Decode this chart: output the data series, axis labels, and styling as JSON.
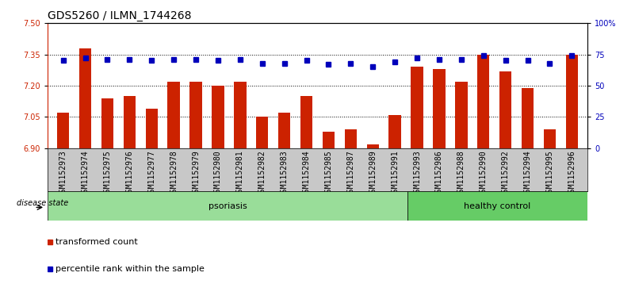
{
  "title": "GDS5260 / ILMN_1744268",
  "samples": [
    "GSM1152973",
    "GSM1152974",
    "GSM1152975",
    "GSM1152976",
    "GSM1152977",
    "GSM1152978",
    "GSM1152979",
    "GSM1152980",
    "GSM1152981",
    "GSM1152982",
    "GSM1152983",
    "GSM1152984",
    "GSM1152985",
    "GSM1152987",
    "GSM1152989",
    "GSM1152991",
    "GSM1152993",
    "GSM1152986",
    "GSM1152988",
    "GSM1152990",
    "GSM1152992",
    "GSM1152994",
    "GSM1152995",
    "GSM1152996"
  ],
  "bar_values": [
    7.07,
    7.38,
    7.14,
    7.15,
    7.09,
    7.22,
    7.22,
    7.2,
    7.22,
    7.05,
    7.07,
    7.15,
    6.98,
    6.99,
    6.92,
    7.06,
    7.29,
    7.28,
    7.22,
    7.35,
    7.27,
    7.19,
    6.99,
    7.35
  ],
  "percentile_values": [
    70,
    72,
    71,
    71,
    70,
    71,
    71,
    70,
    71,
    68,
    68,
    70,
    67,
    68,
    65,
    69,
    72,
    71,
    71,
    74,
    70,
    70,
    68,
    74
  ],
  "bar_color": "#cc2200",
  "square_color": "#0000bb",
  "ylim_left": [
    6.9,
    7.5
  ],
  "ylim_right": [
    0,
    100
  ],
  "yticks_left": [
    6.9,
    7.05,
    7.2,
    7.35,
    7.5
  ],
  "yticks_right": [
    0,
    25,
    50,
    75,
    100
  ],
  "ytick_labels_right": [
    "0",
    "25",
    "50",
    "75",
    "100%"
  ],
  "hlines": [
    7.05,
    7.2,
    7.35
  ],
  "psoriasis_count": 16,
  "healthy_count": 8,
  "group1_label": "psoriasis",
  "group2_label": "healthy control",
  "legend_bar_label": "transformed count",
  "legend_sq_label": "percentile rank within the sample",
  "disease_state_label": "disease state",
  "plot_bg": "#ffffff",
  "xtick_bg": "#c8c8c8",
  "group1_color": "#99dd99",
  "group2_color": "#66cc66",
  "title_fontsize": 10,
  "tick_fontsize": 7,
  "label_fontsize": 8
}
